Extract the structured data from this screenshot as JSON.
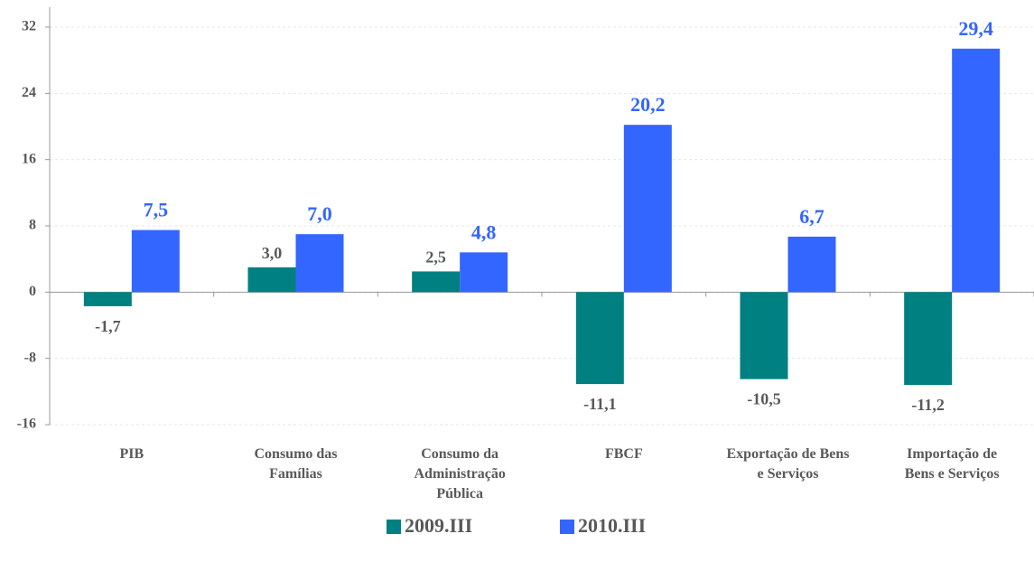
{
  "chart_data": {
    "type": "bar",
    "categories": [
      "PIB",
      "Consumo das Famílias",
      "Consumo da Administração Pública",
      "FBCF",
      "Exportação de Bens e Serviços",
      "Importação de Bens e Serviços"
    ],
    "series": [
      {
        "name": "2009.III",
        "color": "#008080",
        "label_color": "#595959",
        "values": [
          -1.7,
          3.0,
          2.5,
          -11.1,
          -10.5,
          -11.2
        ],
        "value_labels": [
          "-1,7",
          "3,0",
          "2,5",
          "-11,1",
          "-10,5",
          "-11,2"
        ]
      },
      {
        "name": "2010.III",
        "color": "#3366ff",
        "label_color": "#3366ff",
        "values": [
          7.5,
          7.0,
          4.8,
          20.2,
          6.7,
          29.4
        ],
        "value_labels": [
          "7,5",
          "7,0",
          "4,8",
          "20,2",
          "6,7",
          "29,4"
        ]
      }
    ],
    "ylim": [
      -16,
      32
    ],
    "yticks": [
      -16,
      -8,
      0,
      8,
      16,
      24,
      32
    ],
    "grid": true,
    "legend": "bottom"
  }
}
